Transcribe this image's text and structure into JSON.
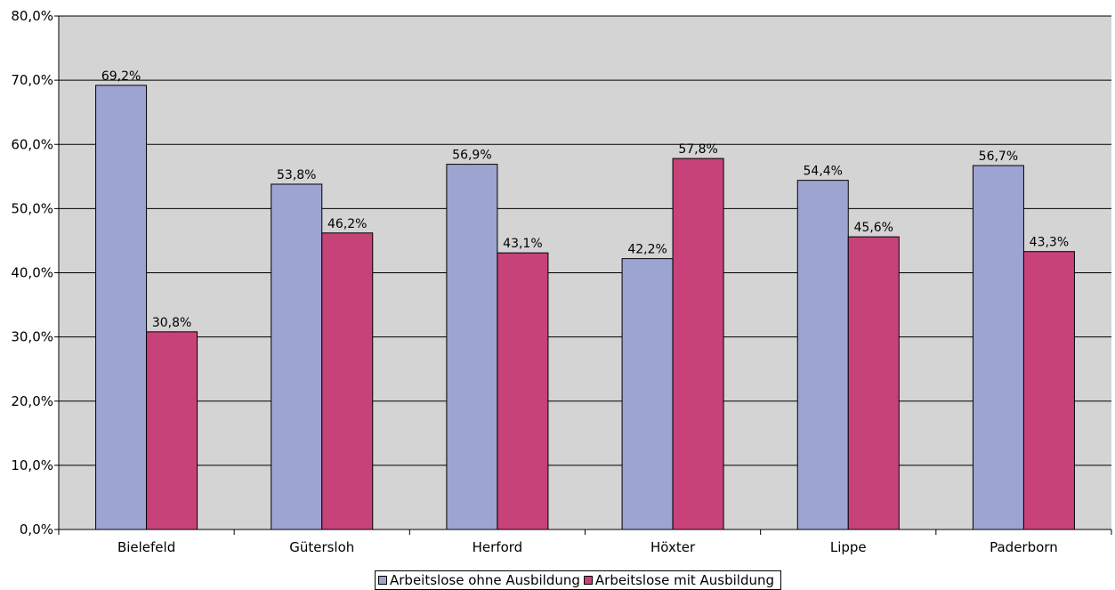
{
  "chart_data": {
    "type": "bar",
    "categories": [
      "Bielefeld",
      "Gütersloh",
      "Herford",
      "Höxter",
      "Lippe",
      "Paderborn"
    ],
    "series": [
      {
        "name": "Arbeitslose ohne Ausbildung",
        "color": "#9EA4D1",
        "values": [
          69.2,
          53.8,
          56.9,
          42.2,
          54.4,
          56.7
        ],
        "labels": [
          "69,2%",
          "53,8%",
          "56,9%",
          "42,2%",
          "54,4%",
          "56,7%"
        ]
      },
      {
        "name": "Arbeitslose mit Ausbildung",
        "color": "#C8427A",
        "values": [
          30.8,
          46.2,
          43.1,
          57.8,
          45.6,
          43.3
        ],
        "labels": [
          "30,8%",
          "46,2%",
          "43,1%",
          "57,8%",
          "45,6%",
          "43,3%"
        ]
      }
    ],
    "ylim": [
      0,
      80
    ],
    "yticks": [
      0,
      10,
      20,
      30,
      40,
      50,
      60,
      70,
      80
    ],
    "ytick_labels": [
      "0,0%",
      "10,0%",
      "20,0%",
      "30,0%",
      "40,0%",
      "50,0%",
      "60,0%",
      "70,0%",
      "80,0%"
    ],
    "title": "",
    "xlabel": "",
    "ylabel": "",
    "grid": true,
    "plot_background": "#D4D4D4",
    "legend_position": "bottom"
  }
}
